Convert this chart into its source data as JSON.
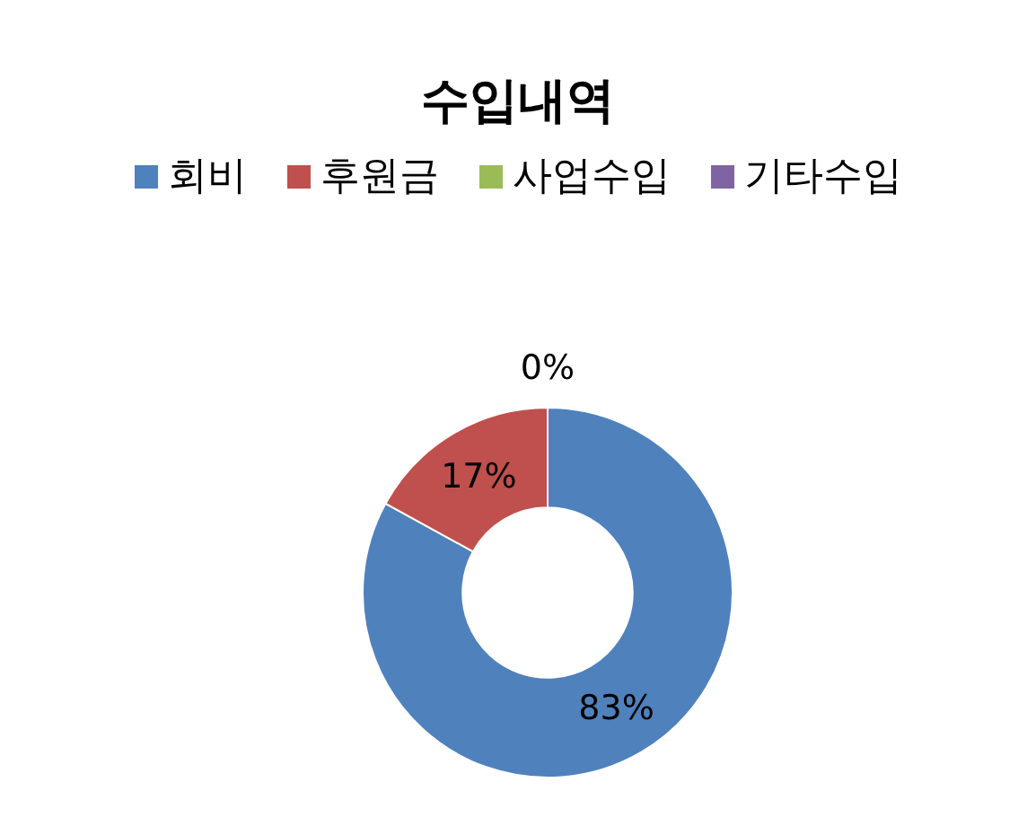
{
  "chart_data": {
    "type": "donut",
    "title": "수입내역",
    "categories": [
      "회비",
      "후원금",
      "사업수입",
      "기타수입"
    ],
    "values": [
      83,
      17,
      0,
      0
    ],
    "colors": [
      "#4f81bd",
      "#c0504d",
      "#9bbb59",
      "#8064a2"
    ],
    "value_labels": [
      "83%",
      "17%",
      "0%",
      null
    ],
    "legend": "top"
  }
}
